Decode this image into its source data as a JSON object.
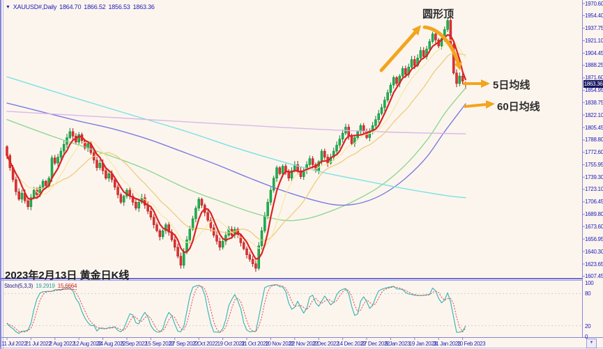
{
  "header": {
    "symbol_line": "XAUUSD#,Daily",
    "open": "1864.70",
    "high": "1866.52",
    "low": "1856.53",
    "close": "1863.36"
  },
  "icons": {
    "dropdown_glyph": "▼",
    "scroll_glyph": "▼"
  },
  "annotations": {
    "top_pattern": "圆形顶",
    "ma5_label": "5日均线",
    "ma60_label": "60日均线",
    "date_note": "2023年2月13日 黄金日K线"
  },
  "price_axis": {
    "current": "1863.36",
    "labels": [
      "1970.60",
      "1954.40",
      "1937.75",
      "1921.10",
      "1904.45",
      "1888.25",
      "1871.60",
      "1854.95",
      "1838.75",
      "1822.10",
      "1805.45",
      "1788.80",
      "1772.60",
      "1755.95",
      "1739.30",
      "1723.10",
      "1706.45",
      "1689.80",
      "1673.60",
      "1656.95",
      "1640.30",
      "1623.65",
      "1607.45"
    ]
  },
  "date_axis": {
    "labels": [
      "11 Jul 2022",
      "21 Jul 2022",
      "2 Aug 2022",
      "12 Aug 2022",
      "24 Aug 2022",
      "5 Sep 2022",
      "15 Sep 2022",
      "27 Sep 2022",
      "7 Oct 2022",
      "19 Oct 2022",
      "31 Oct 2022",
      "10 Nov 2022",
      "22 Nov 2022",
      "2 Dec 2022",
      "14 Dec 2022",
      "27 Dec 2022",
      "9 Jan 2023",
      "19 Jan 2023",
      "31 Jan 2023",
      "10 Feb 2023"
    ]
  },
  "stoch_panel": {
    "label": "Stoch(5,3,3)",
    "k_value": "19.2919",
    "d_value": "15.6664",
    "levels": [
      "100",
      "80",
      "20",
      "0"
    ]
  },
  "colors": {
    "bg": "#fcf5ee",
    "frame": "#8585d6",
    "axis_text": "#2323bb",
    "bull": "#1db24e",
    "bull_dark": "#0c8034",
    "bear": "#e23232",
    "bear_dark": "#a81414",
    "annotation_arrow": "#f2a51d",
    "price_box_bg": "#15155e",
    "stoch_k": "#3db8b8",
    "stoch_d": "#e05050",
    "grid_dotted": "#cfcfcf"
  },
  "chart_data": {
    "type": "candlestick",
    "title": "XAUUSD# Daily (gold daily K-line), 13 Feb 2023",
    "y_axis": {
      "min": 1607.45,
      "max": 1970.6,
      "step": 16.65
    },
    "x_labels": [
      "11 Jul 2022",
      "21 Jul 2022",
      "2 Aug 2022",
      "12 Aug 2022",
      "24 Aug 2022",
      "5 Sep 2022",
      "15 Sep 2022",
      "27 Sep 2022",
      "7 Oct 2022",
      "19 Oct 2022",
      "31 Oct 2022",
      "10 Nov 2022",
      "22 Nov 2022",
      "2 Dec 2022",
      "14 Dec 2022",
      "27 Dec 2022",
      "9 Jan 2023",
      "19 Jan 2023",
      "31 Jan 2023",
      "10 Feb 2023"
    ],
    "bars_per_label": 8,
    "bar_count": 154,
    "closes": [
      1768,
      1752,
      1736,
      1720,
      1710,
      1718,
      1708,
      1700,
      1712,
      1722,
      1716,
      1726,
      1734,
      1728,
      1738,
      1765,
      1758,
      1766,
      1774,
      1783,
      1792,
      1800,
      1794,
      1786,
      1796,
      1788,
      1778,
      1784,
      1772,
      1762,
      1752,
      1758,
      1748,
      1738,
      1744,
      1736,
      1726,
      1716,
      1706,
      1714,
      1722,
      1714,
      1706,
      1698,
      1706,
      1712,
      1702,
      1694,
      1686,
      1676,
      1668,
      1660,
      1668,
      1676,
      1666,
      1656,
      1646,
      1634,
      1622,
      1640,
      1656,
      1670,
      1684,
      1698,
      1710,
      1702,
      1692,
      1682,
      1672,
      1662,
      1654,
      1646,
      1654,
      1662,
      1670,
      1662,
      1670,
      1662,
      1652,
      1644,
      1636,
      1630,
      1624,
      1618,
      1648,
      1668,
      1688,
      1706,
      1722,
      1738,
      1752,
      1744,
      1754,
      1746,
      1738,
      1748,
      1756,
      1748,
      1740,
      1748,
      1756,
      1764,
      1756,
      1748,
      1760,
      1774,
      1766,
      1758,
      1766,
      1774,
      1782,
      1790,
      1798,
      1806,
      1794,
      1784,
      1792,
      1800,
      1808,
      1800,
      1792,
      1800,
      1808,
      1816,
      1824,
      1832,
      1842,
      1852,
      1862,
      1872,
      1864,
      1874,
      1884,
      1876,
      1886,
      1896,
      1888,
      1898,
      1908,
      1900,
      1910,
      1920,
      1930,
      1922,
      1914,
      1924,
      1936,
      1948,
      1916,
      1878,
      1864,
      1874,
      1867,
      1863.4
    ],
    "last_ohlc": {
      "open": 1864.7,
      "high": 1866.52,
      "low": 1856.53,
      "close": 1863.36
    },
    "ma_lines": [
      {
        "name": "MA5",
        "color": "#dd2222",
        "width": 2.2,
        "type": "computed",
        "period": 5
      },
      {
        "name": "MA10",
        "color": "#f6e8a0",
        "width": 1.2,
        "type": "computed",
        "period": 10
      },
      {
        "name": "MA20",
        "color": "#eec96e",
        "width": 1.2,
        "type": "computed",
        "period": 20
      },
      {
        "name": "MA30",
        "color": "#8fd98f",
        "width": 1.4,
        "type": "waypoints",
        "points": [
          [
            0,
            1816
          ],
          [
            15,
            1794
          ],
          [
            30,
            1774
          ],
          [
            45,
            1752
          ],
          [
            60,
            1724
          ],
          [
            72,
            1706
          ],
          [
            82,
            1692
          ],
          [
            92,
            1682
          ],
          [
            100,
            1684
          ],
          [
            108,
            1694
          ],
          [
            116,
            1708
          ],
          [
            124,
            1726
          ],
          [
            132,
            1752
          ],
          [
            140,
            1788
          ],
          [
            146,
            1824
          ],
          [
            150,
            1844
          ],
          [
            153,
            1858
          ]
        ]
      },
      {
        "name": "MA60",
        "color": "#7b7bdf",
        "width": 1.4,
        "type": "waypoints",
        "points": [
          [
            0,
            1838
          ],
          [
            12,
            1826
          ],
          [
            24,
            1814
          ],
          [
            35,
            1804
          ],
          [
            47,
            1790
          ],
          [
            58,
            1774
          ],
          [
            70,
            1756
          ],
          [
            81,
            1738
          ],
          [
            93,
            1720
          ],
          [
            105,
            1706
          ],
          [
            112,
            1702
          ],
          [
            119,
            1706
          ],
          [
            126,
            1718
          ],
          [
            133,
            1738
          ],
          [
            140,
            1766
          ],
          [
            146,
            1800
          ],
          [
            153,
            1837
          ]
        ]
      },
      {
        "name": "MA120",
        "color": "#7fe3e3",
        "width": 1.5,
        "type": "waypoints",
        "points": [
          [
            0,
            1873
          ],
          [
            20,
            1848
          ],
          [
            40,
            1824
          ],
          [
            60,
            1800
          ],
          [
            75,
            1780
          ],
          [
            90,
            1762
          ],
          [
            105,
            1746
          ],
          [
            120,
            1734
          ],
          [
            130,
            1726
          ],
          [
            140,
            1719
          ],
          [
            148,
            1714
          ],
          [
            153,
            1712
          ]
        ]
      },
      {
        "name": "MA250",
        "color": "#d9b8e6",
        "width": 1.4,
        "type": "waypoints",
        "points": [
          [
            0,
            1827
          ],
          [
            30,
            1820
          ],
          [
            60,
            1813
          ],
          [
            90,
            1806
          ],
          [
            110,
            1802
          ],
          [
            130,
            1799
          ],
          [
            153,
            1797
          ]
        ]
      }
    ],
    "stochastic": {
      "k_period": 5,
      "slowing": 3,
      "d_period": 3,
      "levels": [
        100,
        80,
        20,
        0
      ],
      "k_last": 19.2919,
      "d_last": 15.6664
    }
  }
}
